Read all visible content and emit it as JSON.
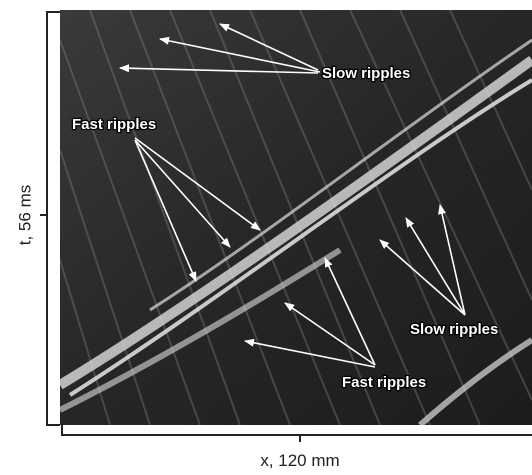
{
  "axis_labels": {
    "x": "x, 120 mm",
    "y": "t, 56 ms"
  },
  "annotations": [
    {
      "label": "Slow ripples"
    },
    {
      "label": "Fast ripples"
    },
    {
      "label": "Slow ripples"
    },
    {
      "label": "Fast ripples"
    }
  ]
}
